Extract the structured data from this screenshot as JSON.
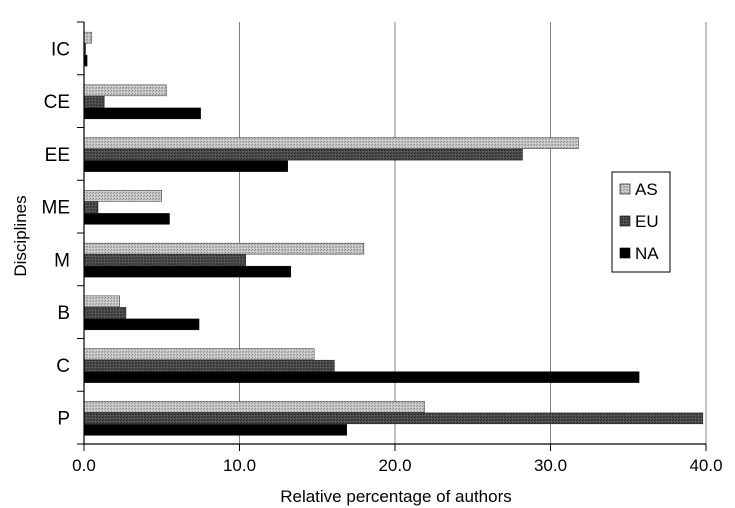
{
  "chart_data": {
    "type": "bar",
    "orientation": "horizontal",
    "xlabel": "Relative percentage of authors",
    "ylabel": "Disciplines",
    "xlim": [
      0,
      40
    ],
    "xticks": [
      0,
      10,
      20,
      30,
      40
    ],
    "xtick_labels": [
      "0.0",
      "10.0",
      "20.0",
      "30.0",
      "40.0"
    ],
    "categories": [
      "IC",
      "CE",
      "EE",
      "ME",
      "M",
      "B",
      "C",
      "P"
    ],
    "series": [
      {
        "name": "AS",
        "color": "#b4b4b4",
        "values": [
          0.5,
          5.3,
          31.8,
          5.0,
          18.0,
          2.3,
          14.8,
          21.9
        ]
      },
      {
        "name": "EU",
        "color": "#4a4a4a",
        "values": [
          0.1,
          1.3,
          28.2,
          0.9,
          10.4,
          2.7,
          16.1,
          39.8
        ]
      },
      {
        "name": "NA",
        "color": "#000000",
        "values": [
          0.2,
          7.5,
          13.1,
          5.5,
          13.3,
          7.4,
          35.7,
          16.9
        ]
      }
    ],
    "grid": "vertical-major",
    "legend": "right"
  }
}
